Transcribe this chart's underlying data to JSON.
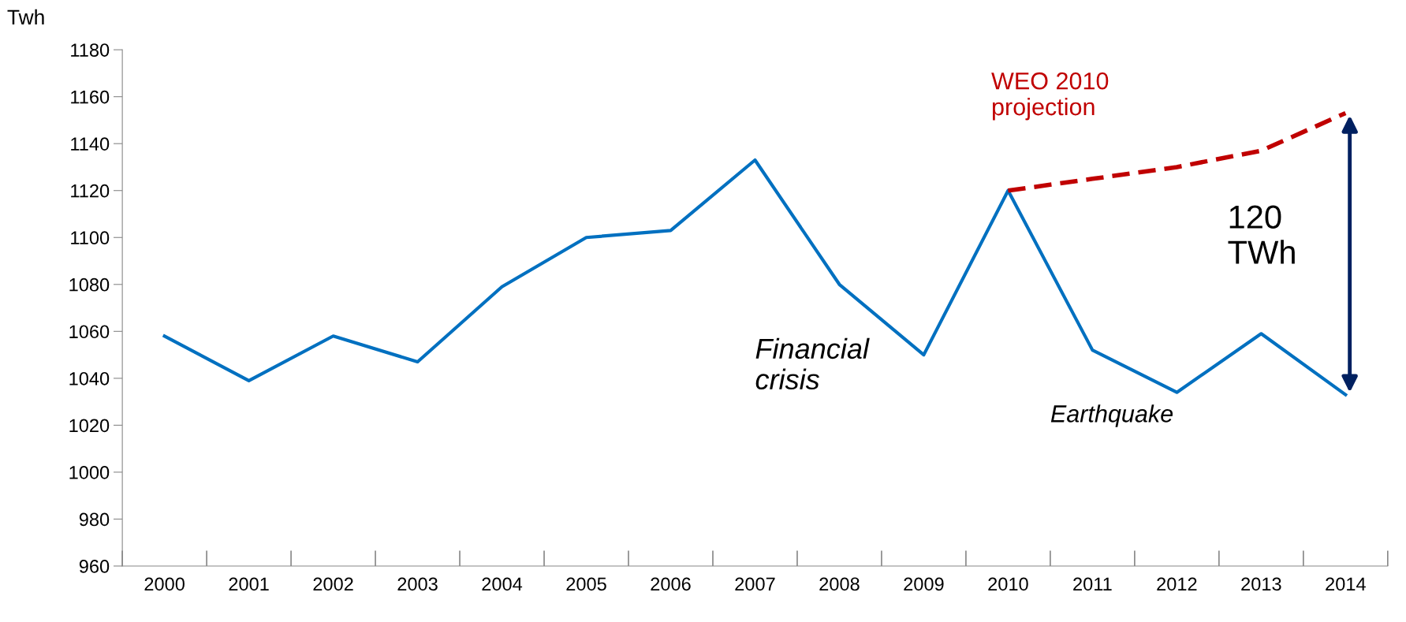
{
  "chart_data": {
    "type": "line",
    "ylabel": "Twh",
    "categories": [
      "2000",
      "2001",
      "2002",
      "2003",
      "2004",
      "2005",
      "2006",
      "2007",
      "2008",
      "2009",
      "2010",
      "2011",
      "2012",
      "2013",
      "2014"
    ],
    "series": [
      {
        "color": "#0070c0",
        "values": [
          1058,
          1039,
          1058,
          1047,
          1079,
          1100,
          1103,
          1133,
          1080,
          1050,
          1120,
          1052,
          1034,
          1059,
          1033
        ]
      },
      {
        "name": "WEO 2010\nprojection",
        "color": "#c00000",
        "line_style": "dashed",
        "values": [
          null,
          null,
          null,
          null,
          null,
          null,
          null,
          null,
          null,
          null,
          1120,
          1125,
          1130,
          1137,
          1153
        ]
      }
    ],
    "ylim": [
      960,
      1180
    ],
    "yticks": [
      960,
      980,
      1000,
      1020,
      1040,
      1060,
      1080,
      1100,
      1120,
      1140,
      1160,
      1180
    ],
    "grid": false,
    "legend": false,
    "annotations": [
      "Financial\ncrisis",
      "Earthquake",
      "120\nTWh"
    ]
  }
}
